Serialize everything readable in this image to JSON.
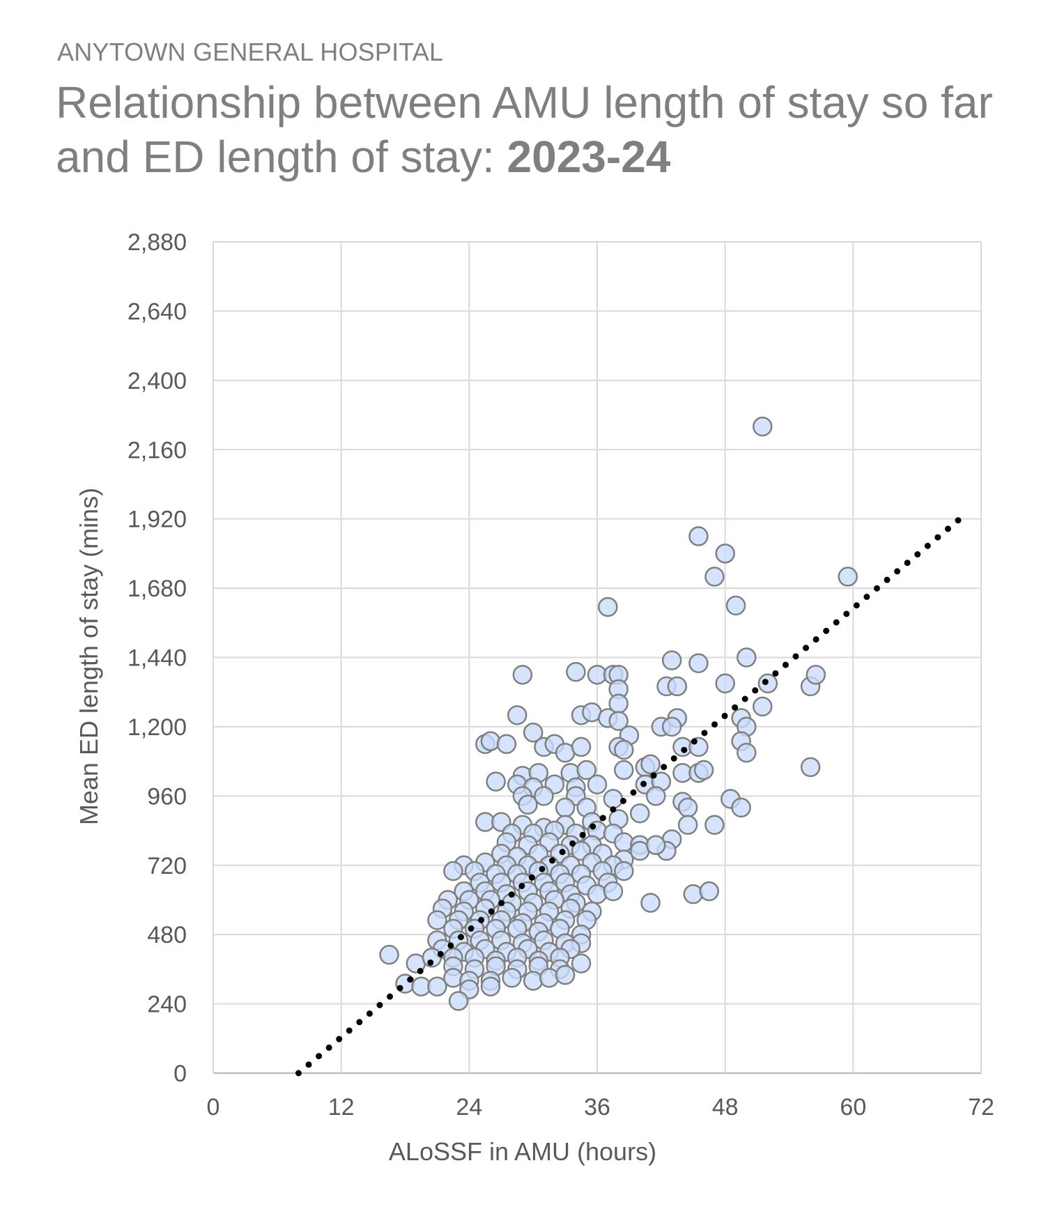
{
  "header": {
    "organization": "ANYTOWN GENERAL HOSPITAL",
    "title_main": "Relationship between AMU length of stay so far and ED length of stay: ",
    "title_period": "2023-24"
  },
  "colors": {
    "marker_fill": "#c9dcfb",
    "marker_stroke": "#7f7f7f",
    "trendline": "#000000",
    "grid": "#d9d9d9",
    "text": "#595959"
  },
  "chart_data": {
    "type": "scatter",
    "xlabel": "ALoSSF in AMU (hours)",
    "ylabel": "Mean ED length of stay (mins)",
    "xlim": [
      0,
      72
    ],
    "ylim": [
      0,
      2880
    ],
    "x_ticks": [
      0,
      12,
      24,
      36,
      48,
      60,
      72
    ],
    "y_ticks": [
      0,
      240,
      480,
      720,
      960,
      1200,
      1440,
      1680,
      1920,
      2160,
      2400,
      2640,
      2880
    ],
    "x_tick_labels": [
      "0",
      "12",
      "24",
      "36",
      "48",
      "60",
      "72"
    ],
    "y_tick_labels": [
      "0",
      "240",
      "480",
      "720",
      "960",
      "1,200",
      "1,440",
      "1,680",
      "1,920",
      "2,160",
      "2,400",
      "2,640",
      "2,880"
    ],
    "grid": true,
    "trendline": {
      "style": "dotted",
      "x": [
        8,
        70
      ],
      "y": [
        0,
        1920
      ]
    },
    "series": [
      {
        "points": [
          [
            51.5,
            2240
          ],
          [
            45.5,
            1860
          ],
          [
            48,
            1800
          ],
          [
            47,
            1720
          ],
          [
            59.5,
            1720
          ],
          [
            49,
            1620
          ],
          [
            37,
            1615
          ],
          [
            43,
            1430
          ],
          [
            50,
            1440
          ],
          [
            45.5,
            1420
          ],
          [
            29,
            1380
          ],
          [
            34,
            1390
          ],
          [
            36,
            1380
          ],
          [
            37.5,
            1380
          ],
          [
            38,
            1380
          ],
          [
            38,
            1330
          ],
          [
            42.5,
            1340
          ],
          [
            43.5,
            1340
          ],
          [
            48,
            1350
          ],
          [
            52,
            1350
          ],
          [
            56,
            1340
          ],
          [
            56.5,
            1380
          ],
          [
            38,
            1280
          ],
          [
            51.5,
            1270
          ],
          [
            28.5,
            1240
          ],
          [
            34.5,
            1240
          ],
          [
            35.5,
            1250
          ],
          [
            37,
            1230
          ],
          [
            38,
            1220
          ],
          [
            43.5,
            1230
          ],
          [
            49.5,
            1230
          ],
          [
            30,
            1180
          ],
          [
            39,
            1170
          ],
          [
            42,
            1200
          ],
          [
            43,
            1200
          ],
          [
            50,
            1200
          ],
          [
            25.5,
            1140
          ],
          [
            26,
            1150
          ],
          [
            27.5,
            1140
          ],
          [
            31,
            1130
          ],
          [
            32,
            1140
          ],
          [
            33,
            1110
          ],
          [
            34.5,
            1130
          ],
          [
            38,
            1130
          ],
          [
            38.5,
            1120
          ],
          [
            44,
            1130
          ],
          [
            45.5,
            1130
          ],
          [
            49.5,
            1150
          ],
          [
            50,
            1110
          ],
          [
            29,
            1030
          ],
          [
            30.5,
            1040
          ],
          [
            33.5,
            1040
          ],
          [
            35,
            1050
          ],
          [
            38.5,
            1050
          ],
          [
            40.5,
            1060
          ],
          [
            41,
            1070
          ],
          [
            44,
            1040
          ],
          [
            45.5,
            1040
          ],
          [
            46,
            1050
          ],
          [
            56,
            1060
          ],
          [
            26.5,
            1010
          ],
          [
            28.5,
            1000
          ],
          [
            30,
            990
          ],
          [
            32,
            1000
          ],
          [
            34,
            990
          ],
          [
            36,
            1000
          ],
          [
            40.5,
            1000
          ],
          [
            42,
            1010
          ],
          [
            29,
            960
          ],
          [
            31,
            960
          ],
          [
            34,
            960
          ],
          [
            37.5,
            950
          ],
          [
            41.5,
            960
          ],
          [
            44,
            940
          ],
          [
            48.5,
            950
          ],
          [
            29.5,
            930
          ],
          [
            33,
            920
          ],
          [
            35,
            920
          ],
          [
            40,
            900
          ],
          [
            44.5,
            920
          ],
          [
            49.5,
            920
          ],
          [
            25.5,
            870
          ],
          [
            27,
            870
          ],
          [
            29,
            860
          ],
          [
            31,
            850
          ],
          [
            33,
            860
          ],
          [
            35.5,
            870
          ],
          [
            38,
            880
          ],
          [
            44.5,
            860
          ],
          [
            47,
            860
          ],
          [
            28,
            830
          ],
          [
            30,
            830
          ],
          [
            32,
            840
          ],
          [
            34,
            830
          ],
          [
            36,
            840
          ],
          [
            37.5,
            830
          ],
          [
            43,
            810
          ],
          [
            27.5,
            800
          ],
          [
            29.5,
            790
          ],
          [
            31.5,
            800
          ],
          [
            33.5,
            790
          ],
          [
            35.5,
            790
          ],
          [
            38.5,
            800
          ],
          [
            40,
            790
          ],
          [
            42.5,
            770
          ],
          [
            27,
            760
          ],
          [
            28.5,
            750
          ],
          [
            30.5,
            760
          ],
          [
            32.5,
            760
          ],
          [
            34.5,
            770
          ],
          [
            36.5,
            760
          ],
          [
            38.5,
            740
          ],
          [
            40,
            770
          ],
          [
            41.5,
            790
          ],
          [
            23.5,
            720
          ],
          [
            25.5,
            730
          ],
          [
            27.5,
            720
          ],
          [
            29.5,
            720
          ],
          [
            31.5,
            720
          ],
          [
            33.5,
            720
          ],
          [
            35.5,
            730
          ],
          [
            37.5,
            720
          ],
          [
            22.5,
            700
          ],
          [
            24.5,
            700
          ],
          [
            26.5,
            690
          ],
          [
            28.5,
            690
          ],
          [
            30.5,
            700
          ],
          [
            32.5,
            690
          ],
          [
            34.5,
            690
          ],
          [
            36.5,
            700
          ],
          [
            38.5,
            700
          ],
          [
            25,
            660
          ],
          [
            27,
            660
          ],
          [
            29,
            660
          ],
          [
            31,
            660
          ],
          [
            33,
            660
          ],
          [
            35,
            650
          ],
          [
            37,
            660
          ],
          [
            23.5,
            630
          ],
          [
            25.5,
            630
          ],
          [
            27.5,
            620
          ],
          [
            29.5,
            630
          ],
          [
            31.5,
            630
          ],
          [
            33.5,
            620
          ],
          [
            36,
            620
          ],
          [
            37.5,
            630
          ],
          [
            45,
            620
          ],
          [
            46.5,
            630
          ],
          [
            22,
            600
          ],
          [
            24,
            600
          ],
          [
            26,
            600
          ],
          [
            28,
            590
          ],
          [
            30,
            590
          ],
          [
            32,
            600
          ],
          [
            34,
            590
          ],
          [
            41,
            590
          ],
          [
            21.5,
            570
          ],
          [
            23.5,
            560
          ],
          [
            25.5,
            570
          ],
          [
            27.5,
            560
          ],
          [
            29.5,
            560
          ],
          [
            31.5,
            560
          ],
          [
            33.5,
            570
          ],
          [
            35.5,
            560
          ],
          [
            21,
            530
          ],
          [
            23,
            530
          ],
          [
            25,
            530
          ],
          [
            27,
            530
          ],
          [
            29,
            520
          ],
          [
            31,
            520
          ],
          [
            33,
            530
          ],
          [
            35,
            530
          ],
          [
            22.5,
            500
          ],
          [
            24.5,
            500
          ],
          [
            26.5,
            500
          ],
          [
            28.5,
            500
          ],
          [
            30.5,
            490
          ],
          [
            32.5,
            500
          ],
          [
            34.5,
            480
          ],
          [
            21,
            460
          ],
          [
            23,
            460
          ],
          [
            25,
            460
          ],
          [
            27,
            460
          ],
          [
            29,
            450
          ],
          [
            31,
            460
          ],
          [
            33,
            450
          ],
          [
            34.5,
            450
          ],
          [
            21.5,
            430
          ],
          [
            23.5,
            420
          ],
          [
            25.5,
            430
          ],
          [
            27.5,
            420
          ],
          [
            29.5,
            430
          ],
          [
            31.5,
            420
          ],
          [
            33.5,
            430
          ],
          [
            16.5,
            410
          ],
          [
            19,
            380
          ],
          [
            20.5,
            400
          ],
          [
            22.5,
            400
          ],
          [
            24.5,
            400
          ],
          [
            26.5,
            390
          ],
          [
            28.5,
            400
          ],
          [
            30.5,
            390
          ],
          [
            32.5,
            400
          ],
          [
            34.5,
            380
          ],
          [
            22.5,
            370
          ],
          [
            24.5,
            360
          ],
          [
            26.5,
            370
          ],
          [
            28.5,
            360
          ],
          [
            30.5,
            370
          ],
          [
            32.5,
            360
          ],
          [
            18,
            310
          ],
          [
            19.5,
            300
          ],
          [
            21,
            300
          ],
          [
            22.5,
            330
          ],
          [
            24,
            320
          ],
          [
            26,
            320
          ],
          [
            28,
            330
          ],
          [
            30,
            320
          ],
          [
            31.5,
            330
          ],
          [
            33,
            340
          ],
          [
            24,
            290
          ],
          [
            26,
            300
          ],
          [
            23,
            250
          ]
        ]
      }
    ]
  }
}
